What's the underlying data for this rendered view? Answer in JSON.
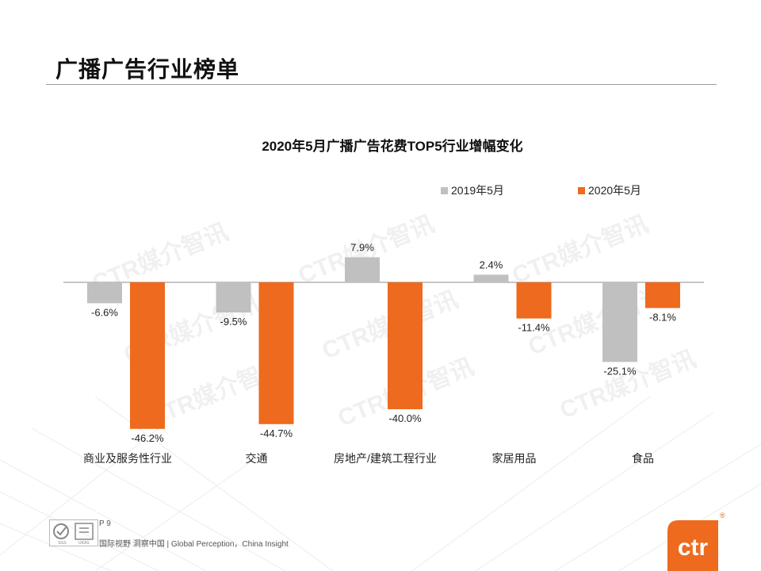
{
  "page": {
    "title": "广播广告行业榜单",
    "page_number": "P 9",
    "slogan": "国际视野  洞察中国 |  Global Perception，China Insight",
    "watermark": "CTR媒介智讯",
    "logo_text": "ctr",
    "registered": "®",
    "cert_text": "SGS · UKAS"
  },
  "colors": {
    "series_2019": "#c0c0c0",
    "series_2020": "#ee6a1e",
    "accent": "#ee6a1e"
  },
  "chart_data": {
    "type": "bar",
    "title": "2020年5月广播广告花费TOP5行业增幅变化",
    "categories": [
      "商业及服务性行业",
      "交通",
      "房地产/建筑工程行业",
      "家居用品",
      "食品"
    ],
    "series": [
      {
        "name": "2019年5月",
        "values": [
          -6.6,
          -9.5,
          7.9,
          2.4,
          -25.1
        ],
        "labels": [
          "-6.6%",
          "-9.5%",
          "7.9%",
          "2.4%",
          "-25.1%"
        ]
      },
      {
        "name": "2020年5月",
        "values": [
          -46.2,
          -44.7,
          -40.0,
          -11.4,
          -8.1
        ],
        "labels": [
          "-46.2%",
          "-44.7%",
          "-40.0%",
          "-11.4%",
          "-8.1%"
        ]
      }
    ],
    "legend_position": "top-right",
    "ylim": [
      -50,
      10
    ],
    "grid": false
  }
}
